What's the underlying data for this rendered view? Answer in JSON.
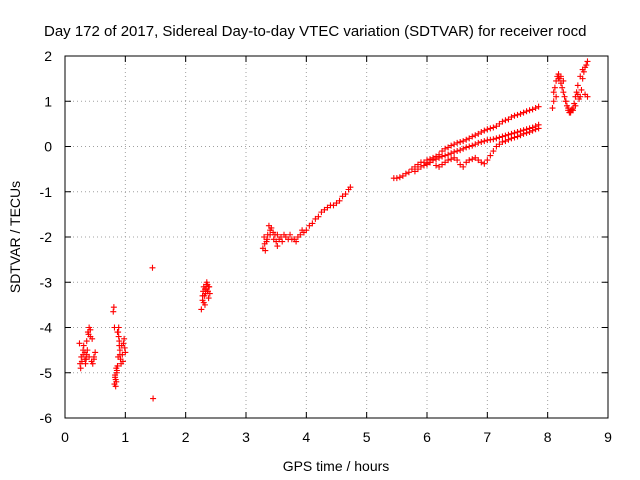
{
  "chart_data": {
    "type": "scatter",
    "title": "Day 172 of 2017, Sidereal Day-to-day VTEC variation (SDTVAR) for receiver rocd",
    "xlabel": "GPS time / hours",
    "ylabel": "SDTVAR / TECUs",
    "xlim": [
      0,
      9
    ],
    "ylim": [
      -6,
      2
    ],
    "xticks": [
      "0",
      "1",
      "2",
      "3",
      "4",
      "5",
      "6",
      "7",
      "8",
      "9"
    ],
    "yticks": [
      "-6",
      "-5",
      "-4",
      "-3",
      "-2",
      "-1",
      "0",
      "1",
      "2"
    ],
    "grid": true,
    "marker": "+",
    "series": [
      {
        "name": "SDTVAR",
        "color": "#ff0000",
        "x": [
          0.24,
          0.26,
          0.28,
          0.3,
          0.31,
          0.33,
          0.35,
          0.36,
          0.38,
          0.4,
          0.42,
          0.44,
          0.46,
          0.48,
          0.5,
          0.25,
          0.27,
          0.3,
          0.33,
          0.36,
          0.39,
          0.42,
          0.45,
          0.48,
          0.34,
          0.37,
          0.4,
          0.8,
          0.81,
          0.82,
          0.83,
          0.84,
          0.85,
          0.86,
          0.87,
          0.88,
          0.89,
          0.9,
          0.91,
          0.92,
          0.93,
          0.94,
          0.95,
          0.96,
          0.97,
          0.98,
          0.99,
          1.0,
          0.82,
          0.84,
          0.86,
          0.88,
          0.9,
          0.83,
          0.85,
          0.87,
          0.89,
          0.91,
          1.45,
          1.46,
          2.26,
          2.28,
          2.29,
          2.3,
          2.31,
          2.32,
          2.33,
          2.34,
          2.35,
          2.36,
          2.37,
          2.38,
          2.39,
          2.4,
          2.28,
          2.3,
          2.32,
          2.34,
          2.36,
          2.38,
          3.3,
          3.32,
          3.34,
          3.36,
          3.38,
          3.4,
          3.42,
          3.45,
          3.48,
          3.5,
          3.52,
          3.55,
          3.58,
          3.6,
          3.63,
          3.66,
          3.7,
          3.73,
          3.76,
          3.8,
          3.83,
          3.86,
          3.9,
          3.93,
          3.96,
          4.0,
          4.05,
          4.1,
          4.15,
          4.2,
          4.25,
          4.3,
          4.35,
          4.4,
          4.45,
          4.5,
          4.55,
          4.6,
          4.65,
          4.7,
          4.73,
          3.28,
          3.31,
          3.35,
          3.4,
          3.46,
          3.52,
          5.45,
          5.5,
          5.55,
          5.6,
          5.65,
          5.7,
          5.75,
          5.8,
          5.85,
          5.9,
          5.95,
          6.0,
          6.05,
          6.1,
          6.15,
          6.2,
          6.25,
          6.3,
          6.35,
          6.4,
          6.45,
          6.5,
          6.55,
          6.6,
          6.65,
          6.7,
          6.75,
          6.8,
          6.85,
          6.9,
          6.95,
          7.0,
          7.05,
          7.1,
          7.15,
          7.2,
          7.25,
          7.3,
          7.35,
          7.4,
          7.45,
          7.5,
          7.55,
          7.6,
          7.65,
          7.7,
          7.75,
          7.8,
          7.85,
          5.8,
          5.85,
          5.9,
          5.95,
          6.0,
          6.05,
          6.1,
          6.15,
          6.2,
          6.25,
          6.3,
          6.35,
          6.4,
          6.45,
          6.5,
          6.55,
          6.6,
          6.65,
          6.7,
          6.75,
          6.8,
          6.85,
          6.9,
          6.95,
          7.0,
          7.05,
          7.1,
          7.15,
          7.2,
          7.25,
          7.3,
          7.35,
          7.4,
          7.45,
          7.5,
          7.55,
          7.6,
          7.65,
          7.7,
          7.75,
          7.8,
          7.85,
          6.0,
          6.05,
          6.1,
          6.15,
          6.2,
          6.25,
          6.3,
          6.35,
          6.4,
          6.45,
          6.5,
          6.55,
          6.6,
          6.65,
          6.7,
          6.75,
          6.8,
          6.85,
          6.9,
          6.95,
          7.0,
          7.05,
          7.1,
          7.15,
          7.2,
          7.25,
          7.3,
          7.35,
          7.4,
          7.45,
          7.5,
          7.55,
          7.6,
          7.65,
          7.7,
          7.75,
          7.8,
          7.85,
          8.08,
          8.1,
          8.12,
          8.14,
          8.16,
          8.18,
          8.2,
          8.22,
          8.24,
          8.26,
          8.28,
          8.3,
          8.32,
          8.34,
          8.36,
          8.38,
          8.4,
          8.42,
          8.44,
          8.46,
          8.48,
          8.5,
          8.52,
          8.54,
          8.56,
          8.58,
          8.6,
          8.62,
          8.64,
          8.66,
          8.1,
          8.14,
          8.18,
          8.22,
          8.26,
          8.3,
          8.34,
          8.38,
          8.42,
          8.46,
          8.5,
          8.54,
          8.58,
          8.62,
          8.66
        ],
        "y": [
          -4.35,
          -4.9,
          -4.75,
          -4.6,
          -4.4,
          -4.55,
          -4.7,
          -4.3,
          -4.1,
          -4.0,
          -4.2,
          -4.75,
          -4.8,
          -4.65,
          -4.55,
          -4.8,
          -4.65,
          -4.5,
          -4.7,
          -4.6,
          -4.15,
          -4.05,
          -4.25,
          -4.7,
          -4.8,
          -4.5,
          -4.65,
          -3.65,
          -3.55,
          -4.0,
          -5.1,
          -5.3,
          -5.2,
          -5.0,
          -4.85,
          -4.1,
          -4.2,
          -4.3,
          -4.5,
          -4.7,
          -4.8,
          -4.4,
          -4.6,
          -4.75,
          -4.35,
          -4.25,
          -4.45,
          -4.55,
          -5.25,
          -5.15,
          -4.95,
          -4.65,
          -4.4,
          -5.05,
          -4.9,
          -4.1,
          -4.0,
          -4.6,
          -2.68,
          -5.57,
          -3.6,
          -3.4,
          -3.2,
          -3.1,
          -3.3,
          -3.5,
          -3.25,
          -3.15,
          -3.0,
          -3.05,
          -3.2,
          -3.35,
          -3.1,
          -3.25,
          -3.3,
          -3.45,
          -3.15,
          -3.05,
          -3.2,
          -3.1,
          -2.0,
          -2.3,
          -2.1,
          -1.95,
          -1.75,
          -1.85,
          -1.8,
          -1.9,
          -1.95,
          -2.1,
          -2.2,
          -2.05,
          -2.0,
          -2.1,
          -1.95,
          -2.0,
          -2.05,
          -1.95,
          -2.05,
          -2.05,
          -2.1,
          -2.0,
          -1.95,
          -1.85,
          -1.9,
          -1.85,
          -1.75,
          -1.7,
          -1.6,
          -1.55,
          -1.45,
          -1.4,
          -1.35,
          -1.3,
          -1.3,
          -1.25,
          -1.2,
          -1.1,
          -1.05,
          -0.95,
          -0.9,
          -2.25,
          -2.15,
          -2.05,
          -1.95,
          -2.05,
          -1.95,
          -0.7,
          -0.7,
          -0.68,
          -0.65,
          -0.6,
          -0.57,
          -0.5,
          -0.45,
          -0.4,
          -0.35,
          -0.35,
          -0.3,
          -0.28,
          -0.25,
          -0.22,
          -0.18,
          -0.1,
          -0.05,
          -0.02,
          0.02,
          0.05,
          0.08,
          0.1,
          0.12,
          0.15,
          0.18,
          0.22,
          0.25,
          0.28,
          0.32,
          0.35,
          0.38,
          0.4,
          0.42,
          0.45,
          0.5,
          0.55,
          0.58,
          0.6,
          0.65,
          0.68,
          0.7,
          0.72,
          0.75,
          0.78,
          0.8,
          0.82,
          0.85,
          0.88,
          -0.55,
          -0.5,
          -0.45,
          -0.42,
          -0.38,
          -0.35,
          -0.3,
          -0.28,
          -0.25,
          -0.22,
          -0.2,
          -0.18,
          -0.15,
          -0.12,
          -0.1,
          -0.08,
          -0.05,
          -0.02,
          0.0,
          0.02,
          0.05,
          0.08,
          0.1,
          0.12,
          0.14,
          0.15,
          0.16,
          0.18,
          0.2,
          0.22,
          0.24,
          0.26,
          0.28,
          0.3,
          0.32,
          0.34,
          0.36,
          0.38,
          0.4,
          0.42,
          0.45,
          0.48,
          -0.4,
          -0.35,
          -0.3,
          -0.42,
          -0.45,
          -0.4,
          -0.35,
          -0.3,
          -0.28,
          -0.25,
          -0.3,
          -0.4,
          -0.45,
          -0.35,
          -0.3,
          -0.28,
          -0.25,
          -0.3,
          -0.35,
          -0.38,
          -0.3,
          -0.2,
          -0.1,
          0.0,
          0.05,
          0.1,
          0.12,
          0.15,
          0.18,
          0.2,
          0.22,
          0.25,
          0.28,
          0.3,
          0.32,
          0.35,
          0.38,
          0.4,
          0.85,
          1.0,
          1.3,
          1.45,
          1.55,
          1.6,
          1.5,
          1.4,
          1.3,
          1.2,
          1.1,
          1.0,
          0.9,
          0.8,
          0.75,
          0.78,
          0.82,
          0.85,
          0.95,
          1.1,
          1.2,
          1.15,
          1.05,
          1.1,
          1.25,
          1.5,
          1.65,
          1.75,
          1.8,
          1.88,
          1.2,
          1.1,
          1.5,
          1.55,
          1.45,
          1.0,
          0.85,
          0.75,
          0.8,
          0.9,
          1.35,
          1.55,
          1.7,
          1.15,
          1.1
        ]
      }
    ]
  }
}
